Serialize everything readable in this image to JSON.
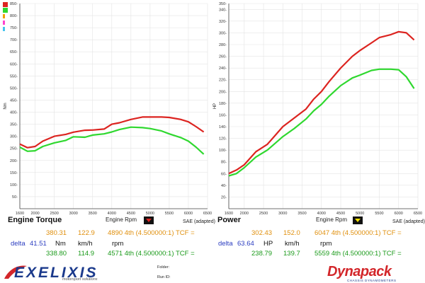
{
  "colors": {
    "run1": "#dc2420",
    "run2": "#2fd82f",
    "run1_text": "#e0900e",
    "run2_text": "#1a9a1a",
    "delta_text": "#2a3cc0",
    "grid": "#e3e3e3",
    "brand_blue": "#1b3a8c",
    "brand_red": "#d3262a"
  },
  "legend_swatches": [
    {
      "color": "#dc2420"
    },
    {
      "color": "#2fd82f"
    },
    {
      "color": "#f0a000"
    },
    {
      "color": "#ff44cc"
    },
    {
      "color": "#44c4ee"
    }
  ],
  "panels": {
    "torque": {
      "title": "Engine Torque",
      "rpm_label": "Engine Rpm",
      "sae_label": "SAE (adapted)",
      "run1": {
        "value": "380.31",
        "speed": "122.9",
        "info": "4890 4th (4.500000:1) TCF ="
      },
      "delta": {
        "label": "delta",
        "value": "41.51",
        "unit": "Nm",
        "speed_unit": "km/h",
        "rpm_unit": "rpm"
      },
      "run2": {
        "value": "338.80",
        "speed": "114.9",
        "info": "4571 4th (4.500000:1) TCF ="
      }
    },
    "power": {
      "title": "Power",
      "rpm_label": "Engine Rpm",
      "sae_label": "SAE (adapted)",
      "run1": {
        "value": "302.43",
        "speed": "152.0",
        "info": "6047 4th (4.500000:1) TCF ="
      },
      "delta": {
        "label": "delta",
        "value": "63.64",
        "unit": "HP",
        "speed_unit": "km/h",
        "rpm_unit": "rpm"
      },
      "run2": {
        "value": "238.79",
        "speed": "139.7",
        "info": "5559 4th (4.500000:1) TCF ="
      }
    }
  },
  "footer": {
    "brand_left": "EXELIXIS",
    "brand_left_sub": "motorsport solutions",
    "folder_label": "Folder:",
    "runid_label": "Run ID:",
    "brand_right": "Dynapack",
    "brand_right_sub": "CHASSIS DYNAMOMETERS"
  },
  "chart_data": [
    {
      "type": "line",
      "title": "",
      "xlabel": "",
      "ylabel": "Nm",
      "xlim": [
        1600,
        6500
      ],
      "ylim": [
        0,
        850
      ],
      "xticks": [
        1600,
        2000,
        2500,
        3000,
        3500,
        4000,
        4500,
        5000,
        5500,
        6000,
        6500
      ],
      "yticks": [
        0,
        50,
        100,
        150,
        200,
        250,
        300,
        350,
        400,
        450,
        500,
        550,
        600,
        650,
        700,
        750,
        800,
        850
      ],
      "grid": true,
      "series": [
        {
          "color": "#dc2420",
          "x": [
            1600,
            1800,
            2000,
            2200,
            2500,
            2800,
            3000,
            3300,
            3500,
            3800,
            4000,
            4200,
            4500,
            4800,
            5000,
            5300,
            5500,
            5800,
            6000,
            6200,
            6400
          ],
          "values": [
            268,
            253,
            258,
            280,
            300,
            308,
            317,
            325,
            326,
            330,
            350,
            356,
            370,
            380,
            380,
            380,
            378,
            370,
            360,
            340,
            318
          ]
        },
        {
          "color": "#2fd82f",
          "x": [
            1600,
            1800,
            2000,
            2200,
            2500,
            2800,
            3000,
            3300,
            3500,
            3800,
            4000,
            4200,
            4500,
            4800,
            5000,
            5300,
            5500,
            5800,
            6000,
            6200,
            6400
          ],
          "values": [
            255,
            238,
            240,
            258,
            273,
            283,
            298,
            296,
            305,
            310,
            318,
            328,
            338,
            336,
            332,
            322,
            310,
            295,
            280,
            255,
            226
          ]
        }
      ]
    },
    {
      "type": "line",
      "title": "",
      "xlabel": "",
      "ylabel": "HP",
      "xlim": [
        1600,
        6500
      ],
      "ylim": [
        0,
        350
      ],
      "xticks": [
        1600,
        2000,
        2500,
        3000,
        3500,
        4000,
        4500,
        5000,
        5500,
        6000,
        6500
      ],
      "yticks": [
        0,
        20,
        40,
        60,
        80,
        100,
        120,
        140,
        160,
        180,
        200,
        220,
        240,
        260,
        280,
        300,
        320,
        340,
        350
      ],
      "grid": true,
      "series": [
        {
          "color": "#dc2420",
          "x": [
            1600,
            1800,
            2000,
            2300,
            2600,
            3000,
            3300,
            3600,
            3800,
            4000,
            4200,
            4500,
            4800,
            5000,
            5300,
            5500,
            5800,
            6000,
            6200,
            6400
          ],
          "values": [
            60,
            66,
            75,
            97,
            110,
            140,
            155,
            170,
            187,
            200,
            217,
            240,
            260,
            270,
            283,
            292,
            297,
            302,
            300,
            288
          ]
        },
        {
          "color": "#2fd82f",
          "x": [
            1600,
            1800,
            2000,
            2300,
            2600,
            3000,
            3300,
            3600,
            3800,
            4000,
            4200,
            4500,
            4800,
            5000,
            5300,
            5500,
            5800,
            6000,
            6200,
            6400
          ],
          "values": [
            56,
            60,
            70,
            88,
            100,
            123,
            137,
            153,
            167,
            178,
            192,
            210,
            223,
            228,
            236,
            238,
            238,
            237,
            225,
            205
          ]
        }
      ]
    }
  ]
}
